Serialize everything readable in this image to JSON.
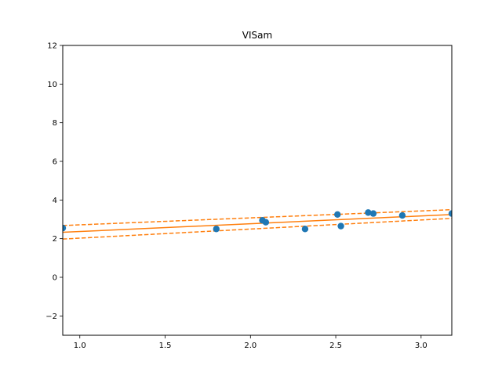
{
  "chart_data": {
    "type": "scatter",
    "title": "VISam",
    "xlabel": "",
    "ylabel": "",
    "xlim": [
      0.9,
      3.18
    ],
    "ylim": [
      -3,
      12
    ],
    "xticks": [
      1.0,
      1.5,
      2.0,
      2.5,
      3.0
    ],
    "xtick_labels": [
      "1.0",
      "1.5",
      "2.0",
      "2.5",
      "3.0"
    ],
    "yticks": [
      -2,
      0,
      2,
      4,
      6,
      8,
      10,
      12
    ],
    "ytick_labels": [
      "−2",
      "0",
      "2",
      "4",
      "6",
      "8",
      "10",
      "12"
    ],
    "grid": false,
    "points": {
      "color": "#1f77b4",
      "x": [
        0.9,
        1.8,
        2.07,
        2.09,
        2.32,
        2.51,
        2.53,
        2.69,
        2.72,
        2.89,
        3.18
      ],
      "y": [
        2.55,
        2.5,
        2.95,
        2.85,
        2.5,
        3.25,
        2.65,
        3.35,
        3.3,
        3.2,
        3.3
      ]
    },
    "fit_line": {
      "color": "#ff7f0e",
      "x": [
        0.9,
        3.18
      ],
      "y": [
        2.33,
        3.25
      ]
    },
    "ci_lower": {
      "color": "#ff7f0e",
      "style": "dashed",
      "x": [
        0.9,
        3.18
      ],
      "y": [
        1.98,
        3.05
      ]
    },
    "ci_upper": {
      "color": "#ff7f0e",
      "style": "dashed",
      "x": [
        0.9,
        3.18
      ],
      "y": [
        2.68,
        3.5
      ]
    }
  }
}
